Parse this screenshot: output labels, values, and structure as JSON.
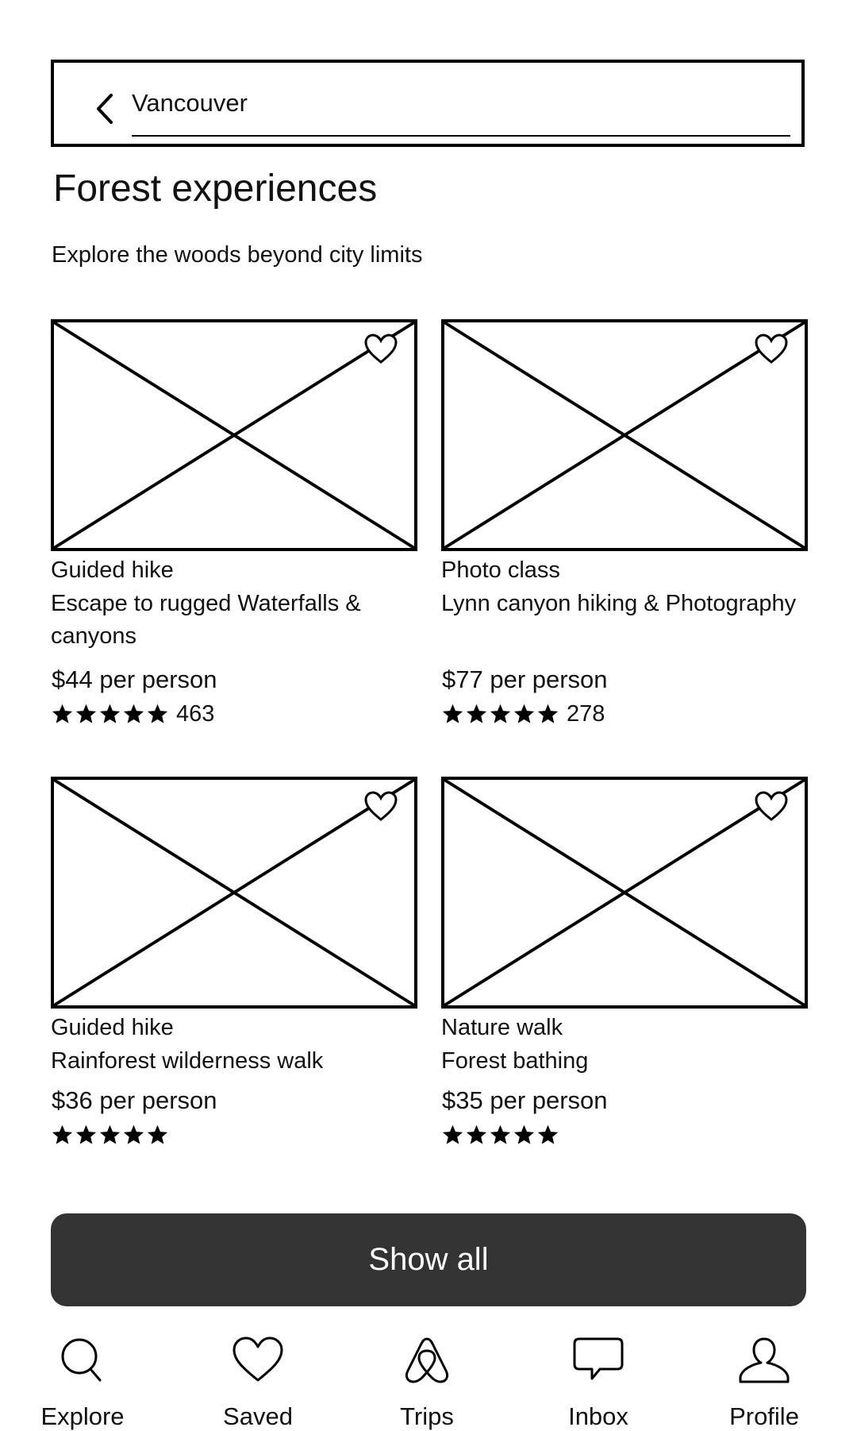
{
  "search": {
    "value": "Vancouver"
  },
  "page": {
    "title": "Forest experiences",
    "subtitle": "Explore the woods beyond city limits"
  },
  "cards": [
    {
      "category": "Guided hike",
      "title": "Escape to rugged Waterfalls & canyons",
      "price": "$44 per person",
      "stars": 5,
      "reviews": "463"
    },
    {
      "category": "Photo class",
      "title": "Lynn canyon hiking & Photography",
      "price": "$77 per person",
      "stars": 5,
      "reviews": "278"
    },
    {
      "category": "Guided hike",
      "title": "Rainforest wilderness walk",
      "price": "$36 per person",
      "stars": 5,
      "reviews": ""
    },
    {
      "category": "Nature walk",
      "title": "Forest bathing",
      "price": "$35 per person",
      "stars": 5,
      "reviews": ""
    }
  ],
  "actions": {
    "show_all": "Show all"
  },
  "nav": {
    "items": [
      {
        "label": "Explore",
        "icon": "search-icon"
      },
      {
        "label": "Saved",
        "icon": "heart-icon"
      },
      {
        "label": "Trips",
        "icon": "trips-icon"
      },
      {
        "label": "Inbox",
        "icon": "message-icon"
      },
      {
        "label": "Profile",
        "icon": "person-icon"
      }
    ]
  },
  "colors": {
    "button_bg": "#333333",
    "button_text": "#ffffff",
    "line": "#000000"
  }
}
